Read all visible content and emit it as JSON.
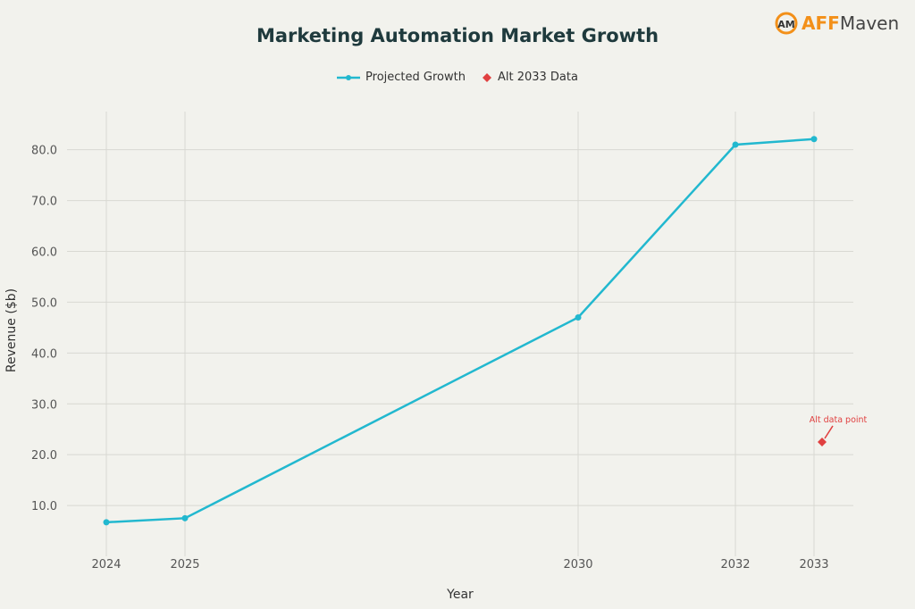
{
  "logo": {
    "text_a": "AFF",
    "text_b": "Maven"
  },
  "chart_data": {
    "type": "line",
    "title": "Marketing Automation Market Growth",
    "xlabel": "Year",
    "ylabel": "Revenue ($b)",
    "x": [
      2024,
      2025,
      2030,
      2032,
      2033
    ],
    "xtick_labels": [
      "2024",
      "2025",
      "2030",
      "2032",
      "2033"
    ],
    "yticks": [
      10,
      20,
      30,
      40,
      50,
      60,
      70,
      80
    ],
    "ytick_labels": [
      "10.0",
      "20.0",
      "30.0",
      "40.0",
      "50.0",
      "60.0",
      "70.0",
      "80.0"
    ],
    "xlim": [
      2023.5,
      2033.5
    ],
    "ylim": [
      0,
      87.5
    ],
    "grid": true,
    "legend_position": "top-center",
    "series": [
      {
        "name": "Projected Growth",
        "type": "line",
        "color": "#22b8cf",
        "x": [
          2024,
          2025,
          2030,
          2032,
          2033
        ],
        "values": [
          6.7,
          7.5,
          47.0,
          81.0,
          82.1
        ]
      },
      {
        "name": "Alt 2033 Data",
        "type": "scatter",
        "marker": "diamond",
        "color": "#e04040",
        "x": [
          2033
        ],
        "values": [
          22.5
        ]
      }
    ],
    "annotations": [
      {
        "text": "Alt data point",
        "x": 2033,
        "y": 22.5,
        "color": "#e04040"
      }
    ]
  }
}
